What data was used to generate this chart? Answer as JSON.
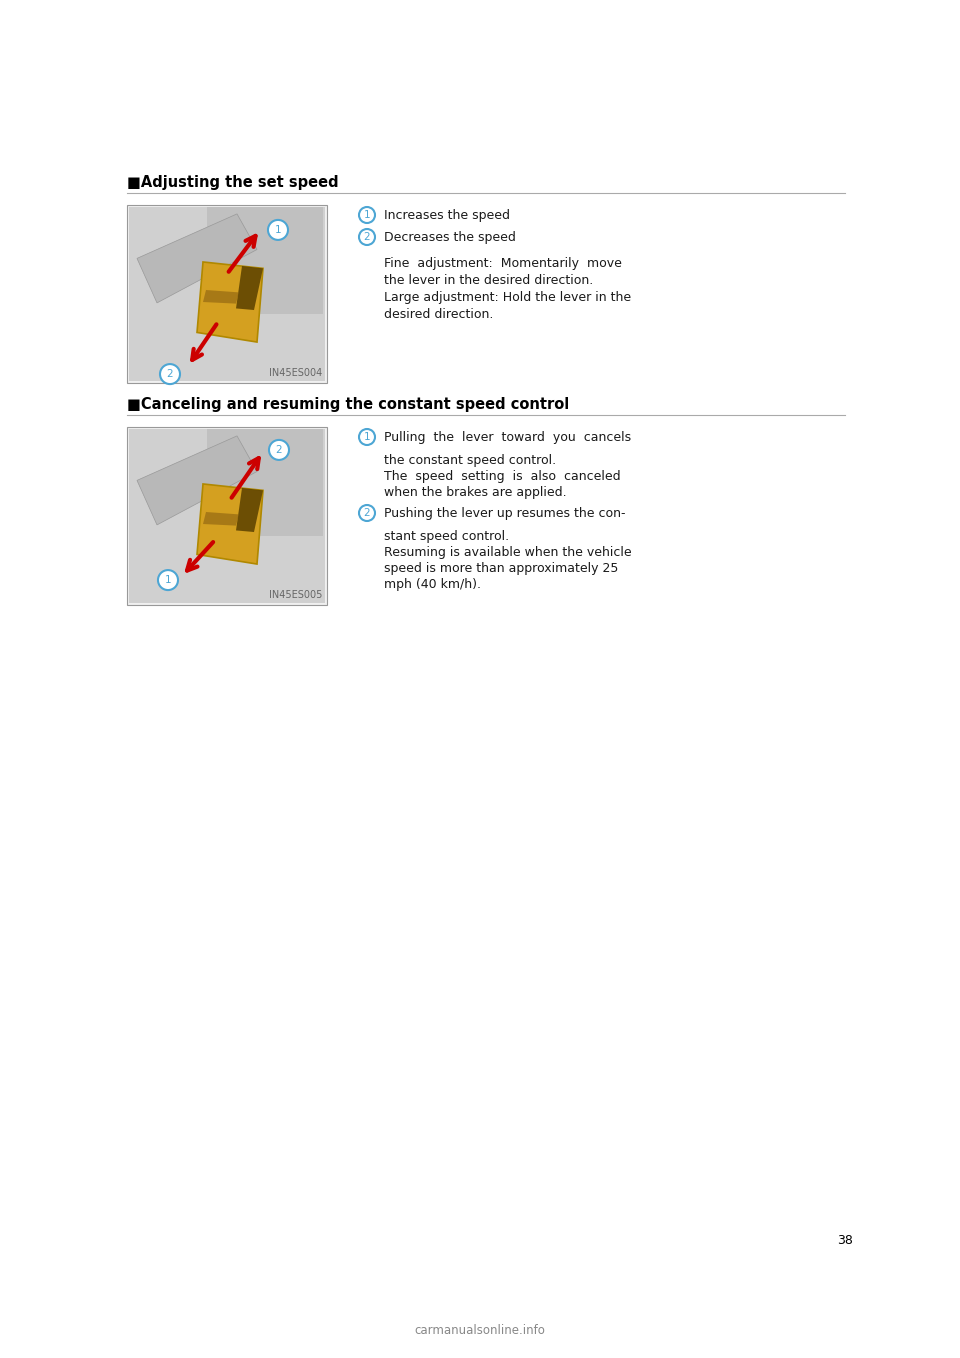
{
  "bg_color": "#ffffff",
  "page_number": "38",
  "watermark": "carmanualsonline.info",
  "section1": {
    "title": "■Adjusting the set speed",
    "image_label": "IN45ES004",
    "item1_text": "Increases the speed",
    "item2_text": "Decreases the speed",
    "body_lines": [
      "Fine  adjustment:  Momentarily  move",
      "the lever in the desired direction.",
      "Large adjustment: Hold the lever in the",
      "desired direction."
    ]
  },
  "section2": {
    "title": "■Canceling and resuming the constant speed control",
    "image_label": "IN45ES005",
    "item1_lines": [
      "Pulling  the  lever  toward  you  cancels",
      "the constant speed control.",
      "The  speed  setting  is  also  canceled",
      "when the brakes are applied."
    ],
    "item2_lines": [
      "Pushing the lever up resumes the con-",
      "stant speed control.",
      "Resuming is available when the vehicle",
      "speed is more than approximately 25",
      "mph (40 km/h)."
    ]
  },
  "circle_color": "#4da6d4",
  "text_color": "#1a1a1a",
  "title_color": "#000000",
  "rule_color": "#aaaaaa",
  "font_family": "DejaVu Sans",
  "title_fontsize": 10.5,
  "text_fontsize": 9,
  "small_fontsize": 7,
  "label_fontsize": 7.5,
  "page_num_fontsize": 9
}
